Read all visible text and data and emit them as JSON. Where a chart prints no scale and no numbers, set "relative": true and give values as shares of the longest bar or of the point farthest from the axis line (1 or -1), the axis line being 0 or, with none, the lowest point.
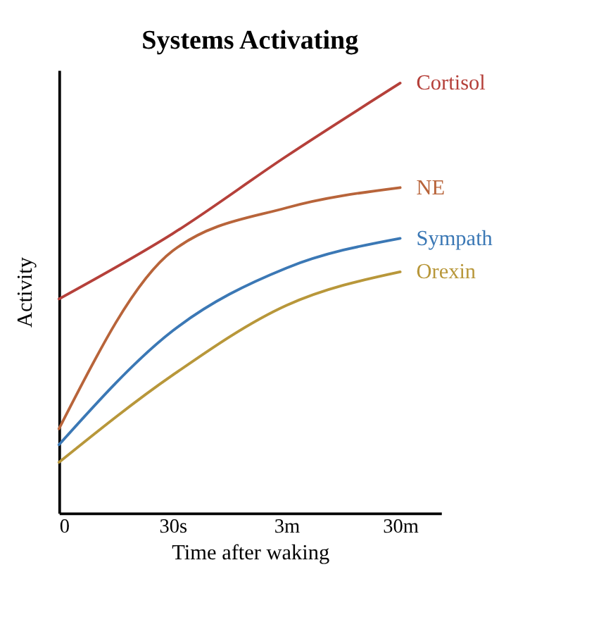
{
  "chart_data": {
    "type": "line",
    "title": "Systems Activating",
    "xlabel": "Time after waking",
    "ylabel": "Activity",
    "relative": true,
    "tick_labels": "x",
    "legend": false,
    "grid": false,
    "marker": "none",
    "line_style": "solid",
    "categories": [
      "0",
      "30s",
      "3m",
      "30m"
    ],
    "series": [
      {
        "name": "Cortisol",
        "color": "#b5403a",
        "values": [
          0.498,
          0.65,
          0.83,
          1
        ]
      },
      {
        "name": "NE",
        "color": "#b8643a",
        "values": [
          0.196,
          0.61,
          0.71,
          0.757
        ]
      },
      {
        "name": "Sympath",
        "color": "#3b78b5",
        "values": [
          0.159,
          0.424,
          0.57,
          0.639
        ]
      },
      {
        "name": "Orexin",
        "color": "#b8973a",
        "values": [
          0.118,
          0.321,
          0.483,
          0.561
        ]
      }
    ]
  }
}
